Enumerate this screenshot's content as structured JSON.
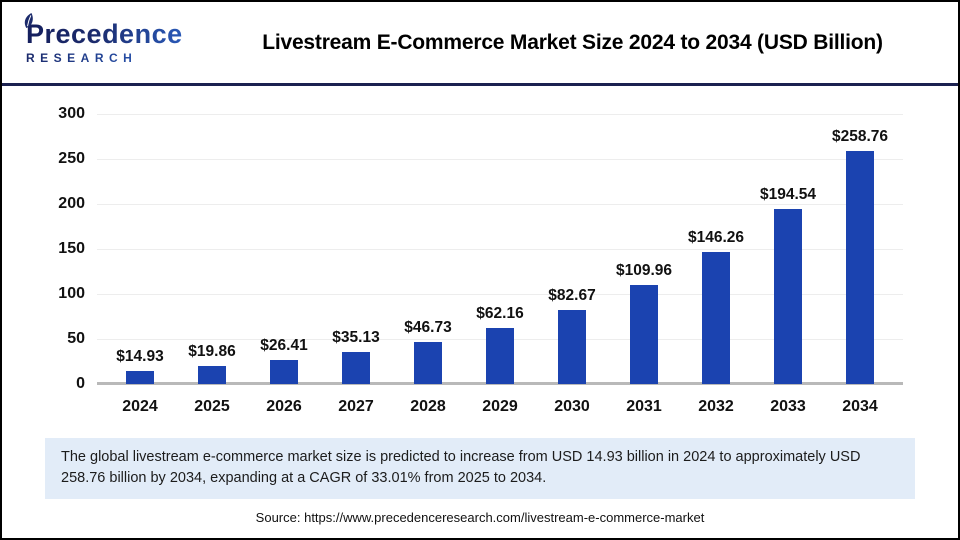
{
  "header": {
    "logo_line1": "Precedence",
    "logo_line2": "RESEARCH",
    "title": "Livestream E-Commerce Market Size 2024 to 2034 (USD Billion)"
  },
  "chart_data": {
    "type": "bar",
    "title": "Livestream E-Commerce Market Size 2024 to 2034 (USD Billion)",
    "categories": [
      "2024",
      "2025",
      "2026",
      "2027",
      "2028",
      "2029",
      "2030",
      "2031",
      "2032",
      "2033",
      "2034"
    ],
    "values": [
      14.93,
      19.86,
      26.41,
      35.13,
      46.73,
      62.16,
      82.67,
      109.96,
      146.26,
      194.54,
      258.76
    ],
    "value_labels": [
      "$14.93",
      "$19.86",
      "$26.41",
      "$35.13",
      "$46.73",
      "$62.16",
      "$82.67",
      "$109.96",
      "$146.26",
      "$194.54",
      "$258.76"
    ],
    "xlabel": "",
    "ylabel": "",
    "ylim": [
      0,
      300
    ],
    "yticks": [
      0,
      50,
      100,
      150,
      200,
      250,
      300
    ],
    "grid": true,
    "legend": false,
    "bar_color": "#1b43b0"
  },
  "note": {
    "text": "The global livestream e-commerce market size is predicted to increase from USD 14.93 billion in 2024 to approximately USD 258.76 billion by 2034, expanding at a CAGR of 33.01% from 2025 to 2034."
  },
  "source": {
    "text": "Source: https://www.precedenceresearch.com/livestream-e-commerce-market"
  },
  "colors": {
    "bar": "#1b43b0",
    "header_divider": "#1b2150",
    "note_background": "#e2ecf8",
    "gridline": "#ededed",
    "axis_line": "#b9b9b9",
    "logo_navy": "#1b2a6b",
    "logo_blue": "#2e6ad4"
  }
}
